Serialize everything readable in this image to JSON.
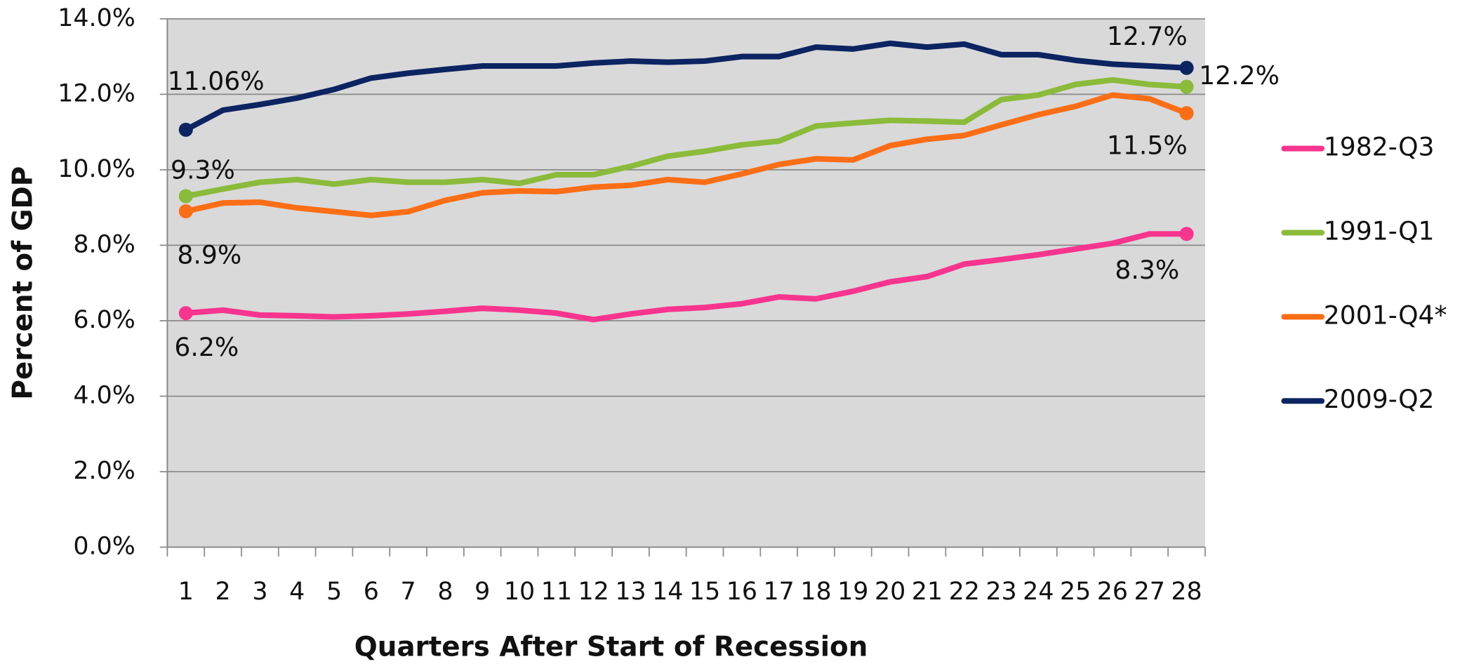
{
  "chart_data": {
    "type": "line",
    "x_label": "Quarters After Start of Recession",
    "y_label": "Percent of GDP",
    "categories": [
      "1",
      "2",
      "3",
      "4",
      "5",
      "6",
      "7",
      "8",
      "9",
      "10",
      "11",
      "12",
      "13",
      "14",
      "15",
      "16",
      "17",
      "18",
      "19",
      "20",
      "21",
      "22",
      "23",
      "24",
      "25",
      "26",
      "27",
      "28"
    ],
    "ylim": [
      0,
      14
    ],
    "yticks": [
      {
        "value": 0,
        "label": "0.0%"
      },
      {
        "value": 2,
        "label": "2.0%"
      },
      {
        "value": 4,
        "label": "4.0%"
      },
      {
        "value": 6,
        "label": "6.0%"
      },
      {
        "value": 8,
        "label": "8.0%"
      },
      {
        "value": 10,
        "label": "10.0%"
      },
      {
        "value": 12,
        "label": "12.0%"
      },
      {
        "value": 14,
        "label": "14.0%"
      }
    ],
    "grid": true,
    "legend": "right",
    "series": [
      {
        "name": "1982-Q3",
        "color": "#f7358f",
        "values": [
          6.2,
          6.28,
          6.15,
          6.13,
          6.1,
          6.13,
          6.18,
          6.25,
          6.33,
          6.28,
          6.2,
          6.03,
          6.18,
          6.3,
          6.35,
          6.45,
          6.63,
          6.58,
          6.78,
          7.03,
          7.17,
          7.5,
          7.62,
          7.75,
          7.9,
          8.05,
          8.3,
          8.3
        ],
        "value_labels": [
          "6.2%",
          null,
          null,
          null,
          null,
          null,
          null,
          null,
          null,
          null,
          null,
          null,
          null,
          null,
          null,
          null,
          null,
          null,
          null,
          null,
          null,
          null,
          null,
          null,
          null,
          null,
          null,
          "8.3%"
        ]
      },
      {
        "name": "1991-Q1",
        "color": "#8bbb3a",
        "values": [
          9.3,
          9.49,
          9.67,
          9.74,
          9.62,
          9.74,
          9.67,
          9.67,
          9.74,
          9.64,
          9.87,
          9.87,
          10.09,
          10.36,
          10.49,
          10.66,
          10.76,
          11.16,
          11.24,
          11.31,
          11.29,
          11.26,
          11.86,
          11.98,
          12.26,
          12.38,
          12.26,
          12.2
        ],
        "value_labels": [
          "9.3%",
          null,
          null,
          null,
          null,
          null,
          null,
          null,
          null,
          null,
          null,
          null,
          null,
          null,
          null,
          null,
          null,
          null,
          null,
          null,
          null,
          null,
          null,
          null,
          null,
          null,
          null,
          "12.2%"
        ]
      },
      {
        "name": "2001-Q4*",
        "color": "#fb6e16",
        "values": [
          8.9,
          9.12,
          9.14,
          8.99,
          8.89,
          8.79,
          8.89,
          9.19,
          9.39,
          9.44,
          9.42,
          9.54,
          9.59,
          9.74,
          9.67,
          9.89,
          10.14,
          10.29,
          10.26,
          10.64,
          10.81,
          10.91,
          11.19,
          11.46,
          11.68,
          11.98,
          11.88,
          11.5
        ],
        "value_labels": [
          "8.9%",
          null,
          null,
          null,
          null,
          null,
          null,
          null,
          null,
          null,
          null,
          null,
          null,
          null,
          null,
          null,
          null,
          null,
          null,
          null,
          null,
          null,
          null,
          null,
          null,
          null,
          null,
          "11.5%"
        ]
      },
      {
        "name": "2009-Q2",
        "color": "#0c2461",
        "values": [
          11.06,
          11.58,
          11.73,
          11.9,
          12.13,
          12.43,
          12.56,
          12.66,
          12.75,
          12.75,
          12.75,
          12.83,
          12.88,
          12.85,
          12.88,
          13.0,
          13.0,
          13.25,
          13.2,
          13.35,
          13.25,
          13.33,
          13.05,
          13.05,
          12.9,
          12.8,
          12.75,
          12.7
        ],
        "value_labels": [
          "11.06%",
          null,
          null,
          null,
          null,
          null,
          null,
          null,
          null,
          null,
          null,
          null,
          null,
          null,
          null,
          null,
          null,
          null,
          null,
          null,
          null,
          null,
          null,
          null,
          null,
          null,
          null,
          "12.7%"
        ]
      }
    ]
  }
}
